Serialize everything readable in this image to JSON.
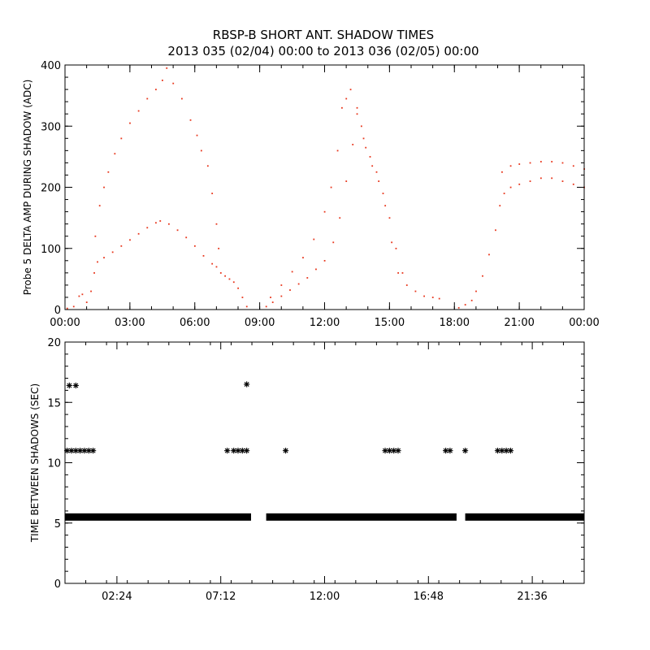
{
  "title": "RBSP-B SHORT ANT. SHADOW TIMES",
  "subtitle": "2013 035 (02/04) 00:00 to 2013 036 (02/05) 00:00",
  "colors": {
    "scatter": "#e8361c",
    "background": "#ffffff",
    "axes": "#000000",
    "markers": "#000000"
  },
  "chart_data": [
    {
      "type": "scatter",
      "panel": "top",
      "xlabel": "",
      "ylabel": "Probe 5 DELTA AMP DURING SHADOW (ADC)",
      "x_unit": "hours since 2013-02-04 00:00",
      "xlim": [
        0,
        24
      ],
      "ylim": [
        0,
        400
      ],
      "grid": false,
      "marker": "dot",
      "xtick_values": [
        0,
        3,
        6,
        9,
        12,
        15,
        18,
        21,
        24
      ],
      "xtick_labels": [
        "00:00",
        "03:00",
        "06:00",
        "09:00",
        "12:00",
        "15:00",
        "18:00",
        "21:00",
        "00:00"
      ],
      "ytick_values": [
        0,
        100,
        200,
        300,
        400
      ],
      "ytick_labels": [
        "0",
        "100",
        "200",
        "300",
        "400"
      ],
      "series": [
        {
          "color": "#e8361c",
          "points": [
            [
              0.1,
              2
            ],
            [
              0.4,
              5
            ],
            [
              0.65,
              22
            ],
            [
              0.8,
              25
            ],
            [
              1.0,
              12
            ],
            [
              1.2,
              30
            ],
            [
              1.35,
              60
            ],
            [
              1.5,
              78
            ],
            [
              1.8,
              85
            ],
            [
              2.2,
              94
            ],
            [
              2.6,
              104
            ],
            [
              3.0,
              114
            ],
            [
              3.4,
              124
            ],
            [
              3.8,
              134
            ],
            [
              4.2,
              142
            ],
            [
              4.4,
              145
            ],
            [
              4.8,
              140
            ],
            [
              5.2,
              130
            ],
            [
              5.6,
              118
            ],
            [
              6.0,
              104
            ],
            [
              6.4,
              88
            ],
            [
              6.8,
              75
            ],
            [
              7.0,
              70
            ],
            [
              7.2,
              60
            ],
            [
              7.4,
              55
            ],
            [
              7.6,
              50
            ],
            [
              7.8,
              45
            ],
            [
              8.0,
              35
            ],
            [
              8.2,
              20
            ],
            [
              8.4,
              5
            ],
            [
              1.4,
              120
            ],
            [
              1.6,
              170
            ],
            [
              1.8,
              200
            ],
            [
              2.0,
              225
            ],
            [
              2.3,
              255
            ],
            [
              2.6,
              280
            ],
            [
              3.0,
              305
            ],
            [
              3.4,
              325
            ],
            [
              3.8,
              345
            ],
            [
              4.2,
              360
            ],
            [
              4.5,
              375
            ],
            [
              4.7,
              395
            ],
            [
              5.0,
              370
            ],
            [
              5.4,
              345
            ],
            [
              5.8,
              310
            ],
            [
              6.1,
              285
            ],
            [
              6.3,
              260
            ],
            [
              6.6,
              235
            ],
            [
              6.8,
              190
            ],
            [
              7.0,
              140
            ],
            [
              7.1,
              100
            ],
            [
              9.3,
              5
            ],
            [
              9.6,
              12
            ],
            [
              10.0,
              22
            ],
            [
              10.4,
              32
            ],
            [
              10.8,
              42
            ],
            [
              11.2,
              52
            ],
            [
              11.6,
              66
            ],
            [
              12.0,
              80
            ],
            [
              12.4,
              110
            ],
            [
              12.7,
              150
            ],
            [
              13.0,
              210
            ],
            [
              13.3,
              270
            ],
            [
              13.5,
              330
            ],
            [
              13.7,
              300
            ],
            [
              13.9,
              265
            ],
            [
              14.2,
              235
            ],
            [
              14.5,
              210
            ],
            [
              14.8,
              170
            ],
            [
              15.1,
              110
            ],
            [
              15.4,
              60
            ],
            [
              15.8,
              40
            ],
            [
              16.2,
              30
            ],
            [
              16.6,
              22
            ],
            [
              17.0,
              20
            ],
            [
              17.3,
              18
            ],
            [
              9.5,
              20
            ],
            [
              10.0,
              40
            ],
            [
              10.5,
              62
            ],
            [
              11.0,
              85
            ],
            [
              11.5,
              115
            ],
            [
              12.0,
              160
            ],
            [
              12.3,
              200
            ],
            [
              12.6,
              260
            ],
            [
              12.8,
              330
            ],
            [
              13.0,
              345
            ],
            [
              13.2,
              360
            ],
            [
              13.5,
              320
            ],
            [
              13.8,
              280
            ],
            [
              14.1,
              250
            ],
            [
              14.4,
              225
            ],
            [
              14.7,
              190
            ],
            [
              15.0,
              150
            ],
            [
              15.3,
              100
            ],
            [
              15.6,
              60
            ],
            [
              18.2,
              3
            ],
            [
              18.5,
              8
            ],
            [
              18.8,
              15
            ],
            [
              19.0,
              30
            ],
            [
              19.3,
              55
            ],
            [
              19.6,
              90
            ],
            [
              19.9,
              130
            ],
            [
              20.1,
              170
            ],
            [
              20.3,
              190
            ],
            [
              20.6,
              200
            ],
            [
              21.0,
              205
            ],
            [
              21.5,
              210
            ],
            [
              22.0,
              215
            ],
            [
              22.5,
              215
            ],
            [
              23.0,
              210
            ],
            [
              23.5,
              205
            ],
            [
              24.0,
              200
            ],
            [
              20.2,
              225
            ],
            [
              20.6,
              235
            ],
            [
              21.0,
              238
            ],
            [
              21.5,
              240
            ],
            [
              22.0,
              242
            ],
            [
              22.5,
              242
            ],
            [
              23.0,
              240
            ],
            [
              23.5,
              235
            ],
            [
              24.0,
              230
            ]
          ]
        }
      ]
    },
    {
      "type": "scatter",
      "panel": "bottom",
      "xlabel": "",
      "ylabel": "TIME BETWEEN SHADOWS (SEC)",
      "x_unit": "hours since 2013-02-04 00:00",
      "xlim": [
        0,
        24
      ],
      "ylim": [
        0,
        20
      ],
      "grid": false,
      "marker": "asterisk",
      "xtick_values": [
        2.4,
        7.2,
        12.0,
        16.8,
        21.6
      ],
      "xtick_labels": [
        "02:24",
        "07:12",
        "12:00",
        "16:48",
        "21:36"
      ],
      "ytick_values": [
        0,
        5,
        10,
        15,
        20
      ],
      "ytick_labels": [
        "0",
        "5",
        "10",
        "15",
        "20"
      ],
      "series": [
        {
          "color": "#000000",
          "bands": [
            {
              "y": 5.5,
              "x_ranges": [
                [
                  0.0,
                  8.6
                ],
                [
                  9.3,
                  18.1
                ],
                [
                  18.5,
                  24.0
                ]
              ]
            }
          ],
          "points": [
            [
              0.2,
              16.4
            ],
            [
              0.5,
              16.4
            ],
            [
              8.4,
              16.5
            ],
            [
              0.1,
              11.0
            ],
            [
              0.3,
              11.0
            ],
            [
              0.5,
              11.0
            ],
            [
              0.7,
              11.0
            ],
            [
              0.9,
              11.0
            ],
            [
              1.1,
              11.0
            ],
            [
              1.3,
              11.0
            ],
            [
              7.5,
              11.0
            ],
            [
              7.8,
              11.0
            ],
            [
              8.0,
              11.0
            ],
            [
              8.2,
              11.0
            ],
            [
              8.4,
              11.0
            ],
            [
              10.2,
              11.0
            ],
            [
              14.8,
              11.0
            ],
            [
              15.0,
              11.0
            ],
            [
              15.2,
              11.0
            ],
            [
              15.4,
              11.0
            ],
            [
              17.6,
              11.0
            ],
            [
              17.8,
              11.0
            ],
            [
              18.5,
              11.0
            ],
            [
              20.0,
              11.0
            ],
            [
              20.2,
              11.0
            ],
            [
              20.4,
              11.0
            ],
            [
              20.6,
              11.0
            ],
            [
              14.5,
              5.5
            ]
          ]
        }
      ]
    }
  ]
}
